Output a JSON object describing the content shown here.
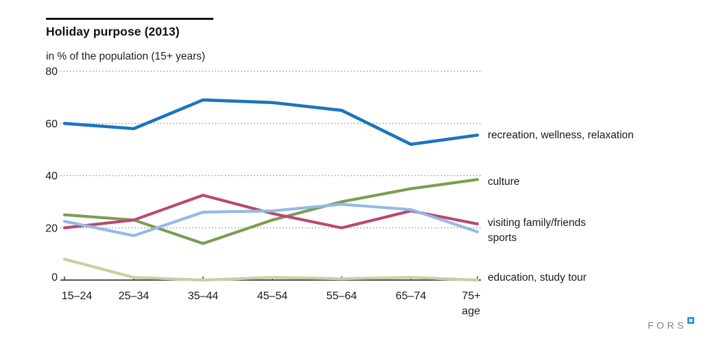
{
  "header": {
    "title": "Holiday purpose (2013)",
    "subtitle": "in % of the population (15+ years)"
  },
  "chart_data": {
    "type": "line",
    "categories": [
      "15–24",
      "25–34",
      "35–44",
      "45–54",
      "55–64",
      "65–74",
      "75+"
    ],
    "x_axis_label": "age",
    "ylabel": "in % of the population (15+ years)",
    "ylim": [
      0,
      80
    ],
    "yticks": [
      0,
      20,
      40,
      60,
      80
    ],
    "grid": "horizontal dotted gridlines at 20/40/60/80, solid baseline at 0",
    "legend_position": "right, next to line ends",
    "series": [
      {
        "name": "recreation, wellness, relaxation",
        "color": "#1b75bc",
        "values": [
          60,
          58,
          69,
          68,
          65,
          52,
          55.5
        ]
      },
      {
        "name": "culture",
        "color": "#7a9e50",
        "values": [
          25,
          23,
          14,
          23,
          30,
          35,
          38.5
        ]
      },
      {
        "name": "visiting family/friends",
        "color": "#b84a6e",
        "values": [
          20,
          23,
          32.5,
          25.5,
          20,
          26.5,
          21.5
        ]
      },
      {
        "name": "sports",
        "color": "#93bae5",
        "values": [
          22.5,
          17,
          26,
          26.5,
          29,
          27,
          18.5
        ]
      },
      {
        "name": "education, study tour",
        "color": "#c8cfa5",
        "values": [
          8,
          1,
          0,
          1,
          0.5,
          1,
          0
        ]
      }
    ]
  },
  "footer": {
    "logo_text": "FORS",
    "logo_accent_color": "#2e9ed9"
  },
  "colors": {
    "axis": "#1a1a1a",
    "gridline": "#8c8c8c",
    "text": "#1a1a1a"
  }
}
